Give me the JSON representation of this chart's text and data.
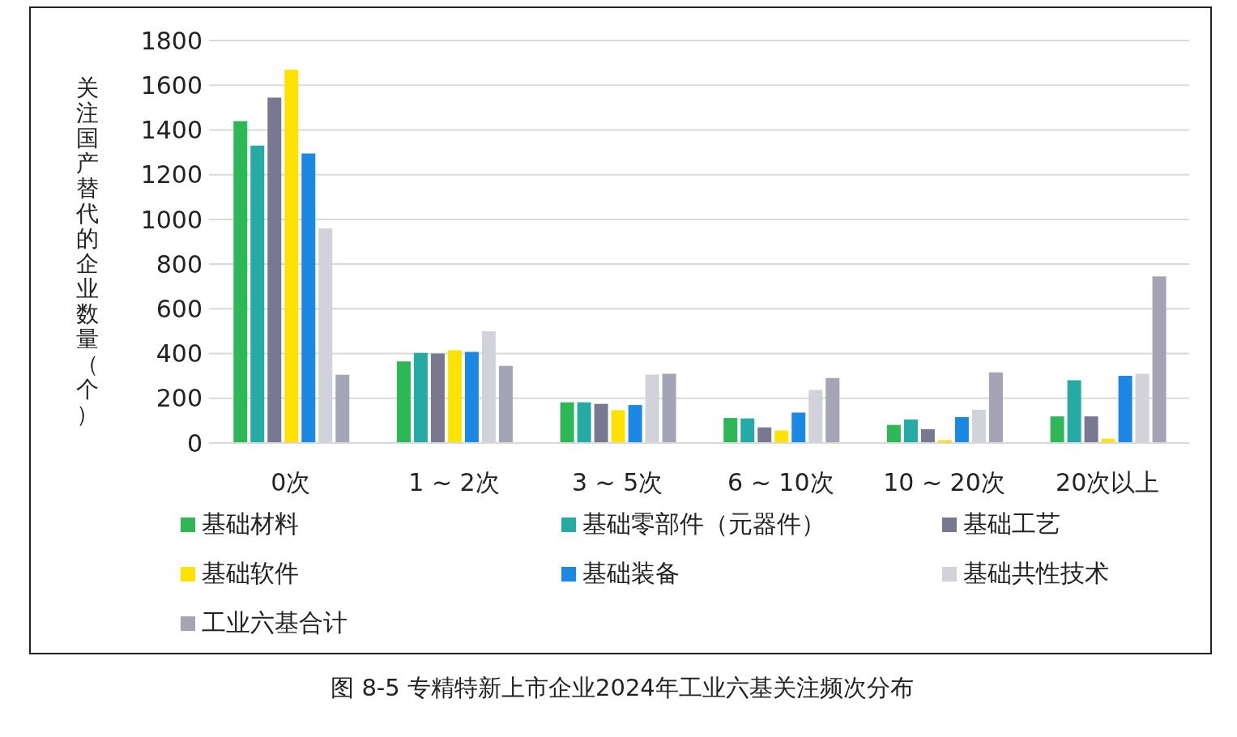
{
  "chart_data": {
    "type": "bar",
    "title": "图 8-5 专精特新上市企业2024年工业六基关注频次分布",
    "ylabel": "关注国产替代的企业数量（个）",
    "categories": [
      "0次",
      "1 ~ 2次",
      "3 ~ 5次",
      "6 ~ 10次",
      "10 ~ 20次",
      "20次以上"
    ],
    "series": [
      {
        "name": "基础材料",
        "color": "#2db757",
        "values": [
          1440,
          365,
          182,
          112,
          81,
          119
        ]
      },
      {
        "name": "基础零部件（元器件）",
        "color": "#26aba4",
        "values": [
          1330,
          403,
          182,
          110,
          105,
          281
        ]
      },
      {
        "name": "基础工艺",
        "color": "#787890",
        "values": [
          1545,
          400,
          175,
          70,
          62,
          119
        ]
      },
      {
        "name": "基础软件",
        "color": "#ffe200",
        "values": [
          1670,
          415,
          147,
          56,
          13,
          19
        ]
      },
      {
        "name": "基础装备",
        "color": "#1b88e3",
        "values": [
          1295,
          407,
          170,
          136,
          116,
          301
        ]
      },
      {
        "name": "基础共性技术",
        "color": "#d2d2da",
        "values": [
          960,
          500,
          306,
          237,
          149,
          310
        ]
      },
      {
        "name": "工业六基合计",
        "color": "#a5a4b4",
        "values": [
          305,
          345,
          310,
          291,
          316,
          745
        ]
      }
    ],
    "ylim": [
      0,
      1800
    ],
    "yticks": [
      0,
      200,
      400,
      600,
      800,
      1000,
      1200,
      1400,
      1600,
      1800
    ],
    "grid": "y",
    "legend": "bottom"
  }
}
